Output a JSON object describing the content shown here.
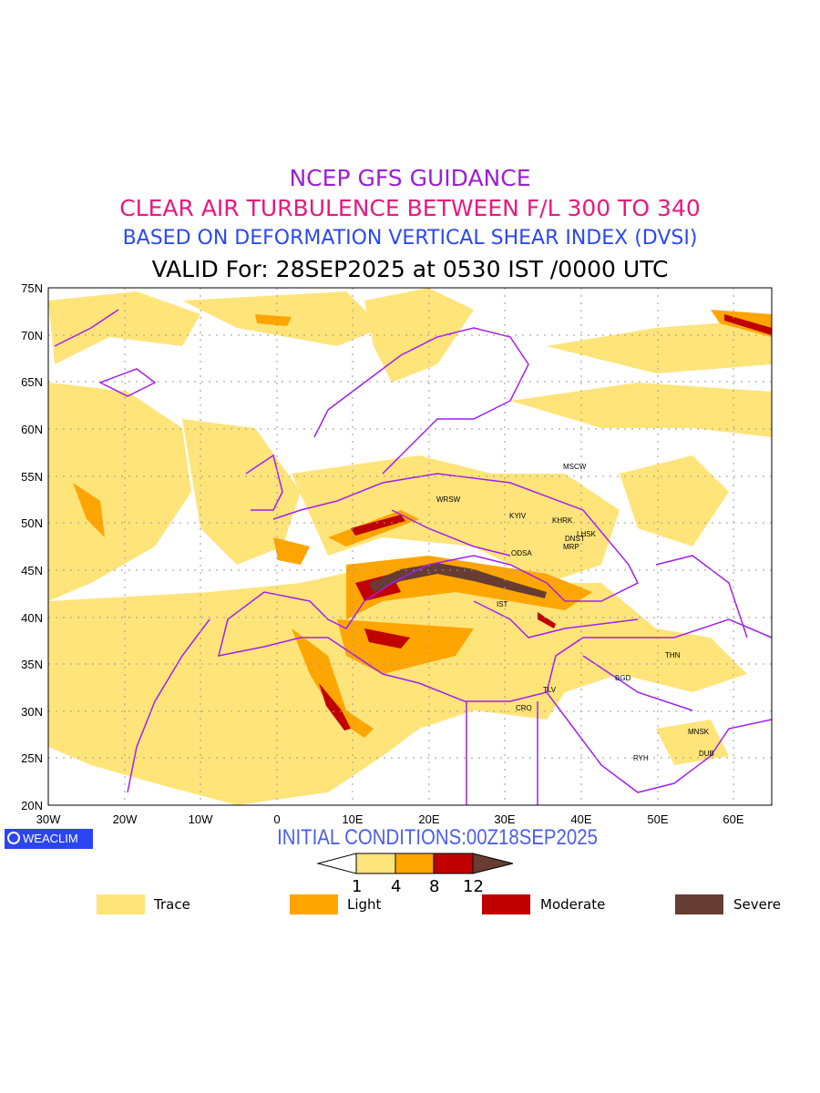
{
  "title": {
    "line1": "NCEP GFS GUIDANCE",
    "line2": "CLEAR AIR TURBULENCE BETWEEN F/L 300 TO 340",
    "line3": "BASED ON DEFORMATION VERTICAL SHEAR INDEX (DVSI)",
    "line4": "VALID For: 28SEP2025 at 0530 IST /0000 UTC"
  },
  "axes": {
    "lat_labels": [
      "75N",
      "70N",
      "65N",
      "60N",
      "55N",
      "50N",
      "45N",
      "40N",
      "35N",
      "30N",
      "25N",
      "20N"
    ],
    "lon_labels": [
      "30W",
      "20W",
      "10W",
      "0",
      "10E",
      "20E",
      "30E",
      "40E",
      "50E",
      "60E"
    ]
  },
  "cities": [
    "MSCW",
    "WRSW",
    "KYIV",
    "KHRK",
    "LHSK",
    "DNST",
    "MRP",
    "ODSA",
    "IST",
    "THN",
    "BGD",
    "TLV",
    "CRO",
    "MNSK",
    "RYH",
    "DUB"
  ],
  "logo": "WEACLIM",
  "initial_conditions": "INITIAL CONDITIONS:00Z18SEP2025",
  "colorbar": {
    "ticks": [
      "1",
      "4",
      "8",
      "12"
    ]
  },
  "legend": [
    {
      "label": "Trace",
      "color": "#ffe47a"
    },
    {
      "label": "Light",
      "color": "#ffa500"
    },
    {
      "label": "Moderate",
      "color": "#c00000"
    },
    {
      "label": "Severe",
      "color": "#673c32"
    }
  ],
  "colors": {
    "coast": "#a020f0",
    "trace": "#ffe47a",
    "light": "#ffa500",
    "moderate": "#c00000",
    "severe": "#673c32"
  }
}
